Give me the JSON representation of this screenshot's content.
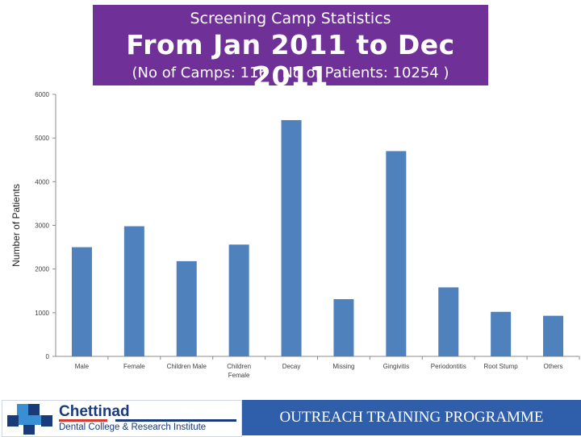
{
  "header": {
    "title": "Screening Camp Statistics",
    "period": "From Jan 2011 to Dec 2011",
    "summary": "(No of Camps: 116  ; No of Patients: 10254 )"
  },
  "chart_data": {
    "type": "bar",
    "categories": [
      "Male",
      "Female",
      "Children Male",
      "Children Female",
      "Decay",
      "Missing",
      "Gingivitis",
      "Periodontitis",
      "Root Stump",
      "Others"
    ],
    "category_lines": [
      [
        "Male"
      ],
      [
        "Female"
      ],
      [
        "Children Male"
      ],
      [
        "Children",
        "Female"
      ],
      [
        "Decay"
      ],
      [
        "Missing"
      ],
      [
        "Gingivitis"
      ],
      [
        "Periodontitis"
      ],
      [
        "Root Stump"
      ],
      [
        "Others"
      ]
    ],
    "values": [
      2500,
      2980,
      2180,
      2560,
      5410,
      1310,
      4700,
      1580,
      1020,
      930
    ],
    "ylabel": "Number of Patients",
    "xlabel": "",
    "ylim": [
      0,
      6000
    ],
    "yticks": [
      0,
      1000,
      2000,
      3000,
      4000,
      5000,
      6000
    ],
    "bar_color": "#4f81bd",
    "grid": false
  },
  "footer": {
    "logo_name": "Chettinad",
    "logo_subtitle": "Dental College & Research Institute",
    "program": "OUTREACH  TRAINING PROGRAMME"
  },
  "colors": {
    "banner": "#6f3198",
    "footer_bar": "#2f5faa"
  }
}
